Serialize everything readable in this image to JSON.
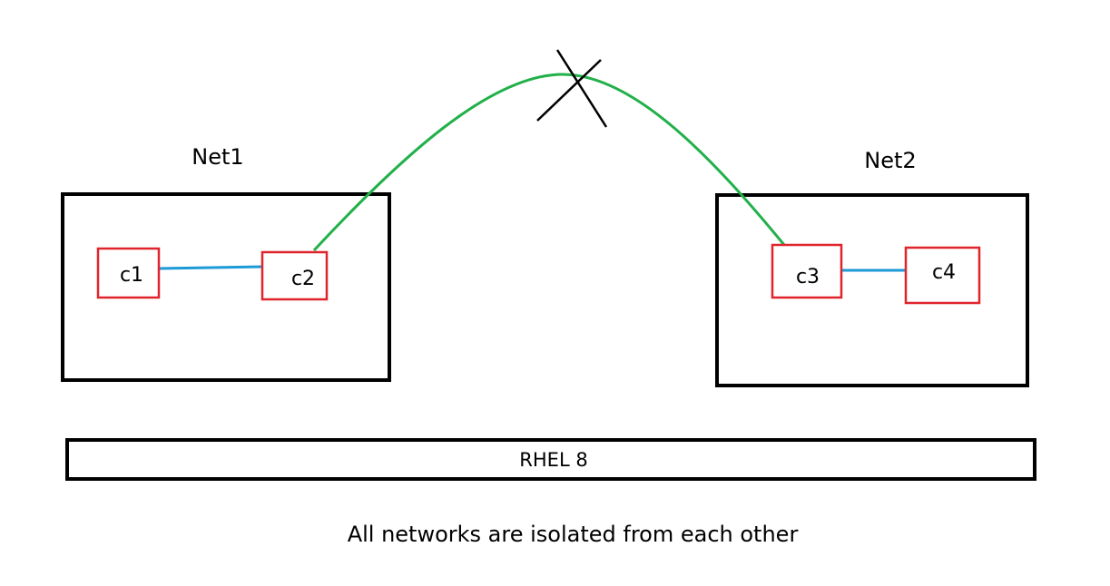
{
  "colors": {
    "network_border": "#000000",
    "container_border": "#e0242c",
    "local_link": "#1e9ad6",
    "cross_link": "#22b04a",
    "blocked_mark": "#000000",
    "text": "#000000"
  },
  "networks": [
    {
      "name": "Net1",
      "containers": [
        "c1",
        "c2"
      ]
    },
    {
      "name": "Net2",
      "containers": [
        "c3",
        "c4"
      ]
    }
  ],
  "host": {
    "label": "RHEL 8"
  },
  "caption": "All networks are isolated from each other"
}
